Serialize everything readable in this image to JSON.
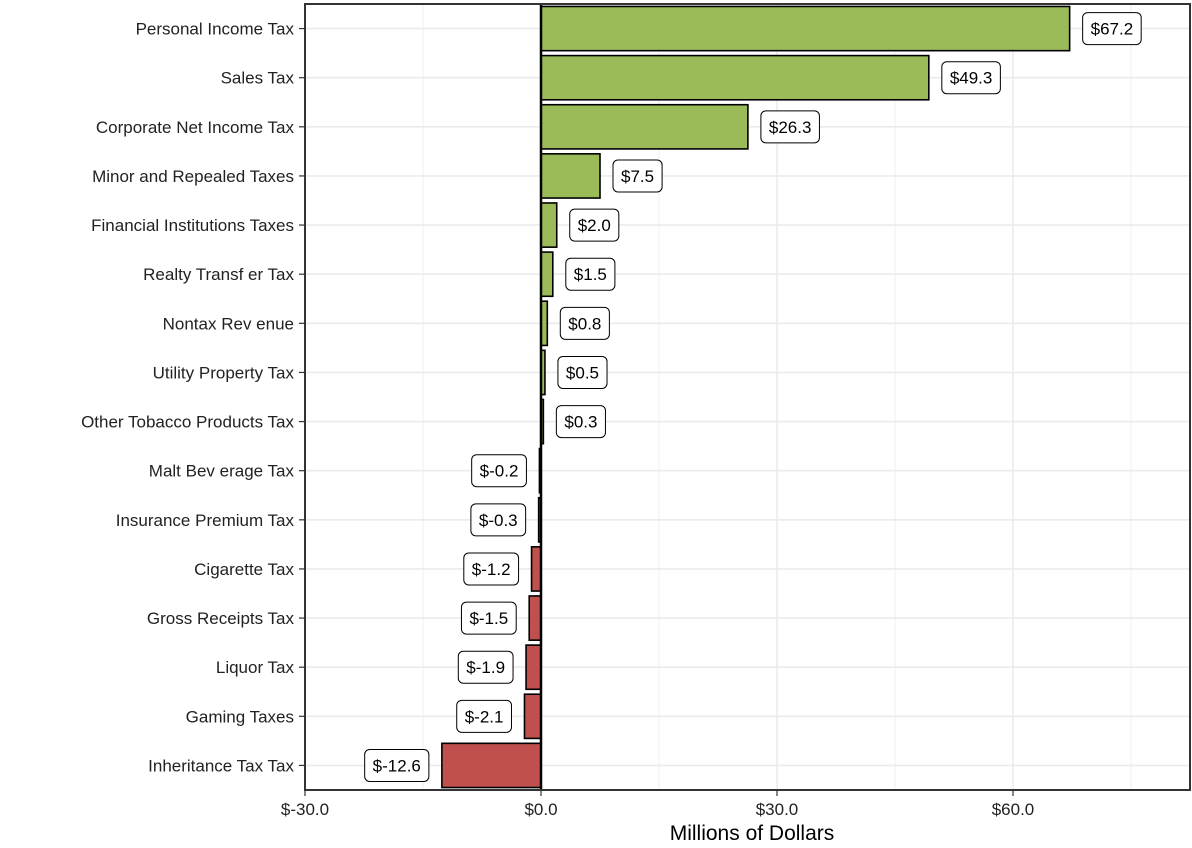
{
  "chart_data": {
    "type": "bar",
    "orientation": "horizontal",
    "categories": [
      "Personal Income Tax",
      "Sales Tax",
      "Corporate Net Income Tax",
      "Minor and Repealed Taxes",
      "Financial Institutions Taxes",
      "Realty Transf er Tax",
      "Nontax Rev enue",
      "Utility Property Tax",
      "Other Tobacco Products Tax",
      "Malt Bev erage Tax",
      "Insurance Premium Tax",
      "Cigarette Tax",
      "Gross Receipts Tax",
      "Liquor Tax",
      "Gaming Taxes",
      "Inheritance Tax Tax"
    ],
    "values": [
      67.2,
      49.3,
      26.3,
      7.5,
      2.0,
      1.5,
      0.8,
      0.5,
      0.3,
      -0.2,
      -0.3,
      -1.2,
      -1.5,
      -1.9,
      -2.1,
      -12.6
    ],
    "data_labels": [
      "$67.2",
      "$49.3",
      "$26.3",
      "$7.5",
      "$2.0",
      "$1.5",
      "$0.8",
      "$0.5",
      "$0.3",
      "$-0.2",
      "$-0.3",
      "$-1.2",
      "$-1.5",
      "$-1.9",
      "$-2.1",
      "$-12.6"
    ],
    "title": "",
    "xlabel": "Millions of Dollars",
    "ylabel": "",
    "xlim": [
      -30,
      82.5
    ],
    "x_ticks": [
      -30,
      0,
      30,
      60
    ],
    "x_tick_labels": [
      "$-30.0",
      "$0.0",
      "$30.0",
      "$60.0"
    ],
    "grid": true,
    "legend": "none",
    "colors": {
      "positive": "#9bbb59",
      "negative": "#c0504d",
      "outline": "#000000",
      "grid": "#ebebeb"
    }
  }
}
